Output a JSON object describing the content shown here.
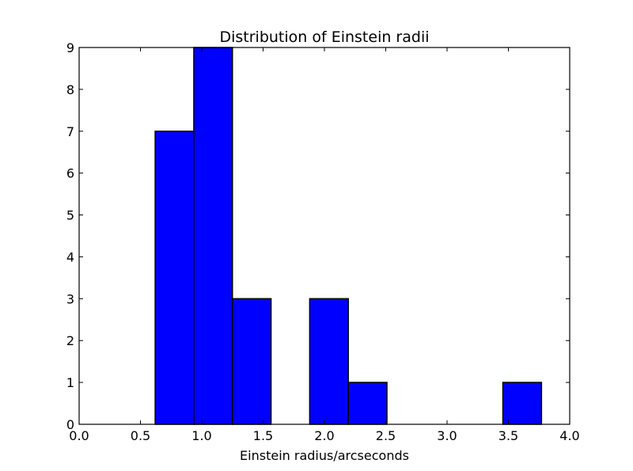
{
  "chart_data": {
    "type": "bar",
    "title": "Distribution of Einstein radii",
    "xlabel": "Einstein radius/arcseconds",
    "ylabel": "",
    "xlim": [
      0.0,
      4.0
    ],
    "ylim": [
      0,
      9
    ],
    "xticks": [
      "0.0",
      "0.5",
      "1.0",
      "1.5",
      "2.0",
      "2.5",
      "3.0",
      "3.5",
      "4.0"
    ],
    "yticks": [
      "0",
      "1",
      "2",
      "3",
      "4",
      "5",
      "6",
      "7",
      "8",
      "9"
    ],
    "bins": [
      {
        "start": 0.62,
        "end": 0.935,
        "count": 7
      },
      {
        "start": 0.935,
        "end": 1.25,
        "count": 9
      },
      {
        "start": 1.25,
        "end": 1.565,
        "count": 3
      },
      {
        "start": 1.565,
        "end": 1.88,
        "count": 0
      },
      {
        "start": 1.88,
        "end": 2.195,
        "count": 3
      },
      {
        "start": 2.195,
        "end": 2.51,
        "count": 1
      },
      {
        "start": 2.51,
        "end": 2.825,
        "count": 0
      },
      {
        "start": 2.825,
        "end": 3.14,
        "count": 0
      },
      {
        "start": 3.14,
        "end": 3.455,
        "count": 0
      },
      {
        "start": 3.455,
        "end": 3.77,
        "count": 1
      }
    ],
    "bar_color": "#0000ff",
    "edge_color": "#000000",
    "grid": false,
    "legend": "none"
  }
}
